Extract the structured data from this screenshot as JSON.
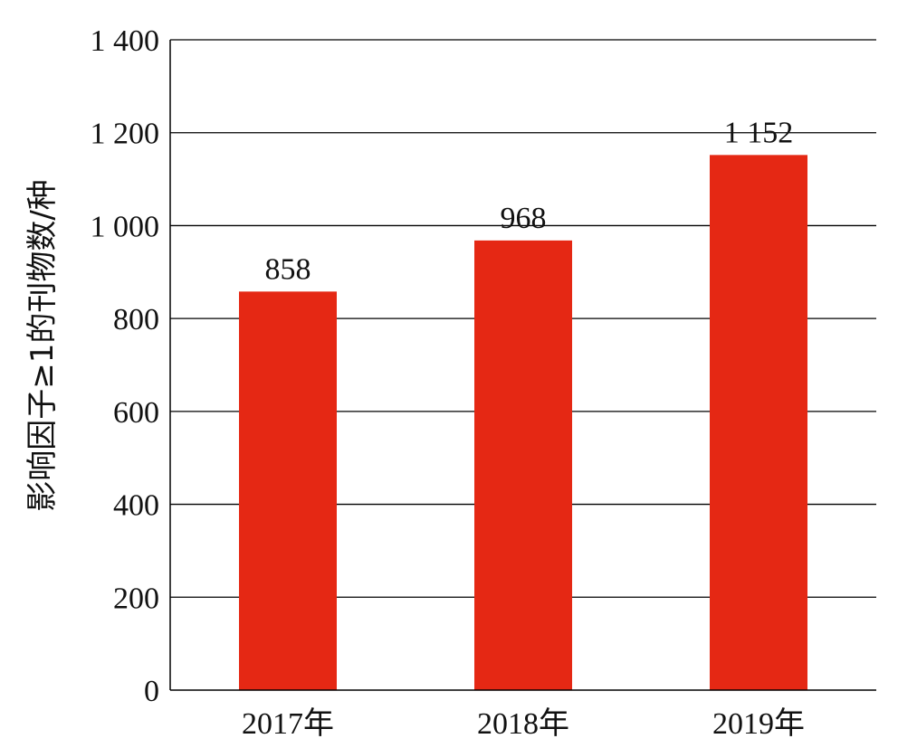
{
  "chart_data": {
    "type": "bar",
    "title": "",
    "xlabel": "",
    "ylabel": "影响因子≥1的刊物数/种",
    "categories": [
      "2017年",
      "2018年",
      "2019年"
    ],
    "values": [
      858,
      968,
      1152
    ],
    "data_labels": [
      "858",
      "968",
      "1 152"
    ],
    "ylim": [
      0,
      1400
    ],
    "yticks": [
      0,
      200,
      400,
      600,
      800,
      1000,
      1200,
      1400
    ],
    "ytick_labels": [
      "0",
      "200",
      "400",
      "600",
      "800",
      "1 000",
      "1 200",
      "1 400"
    ],
    "grid": true,
    "legend": "none",
    "bar_color": "#e52814"
  }
}
